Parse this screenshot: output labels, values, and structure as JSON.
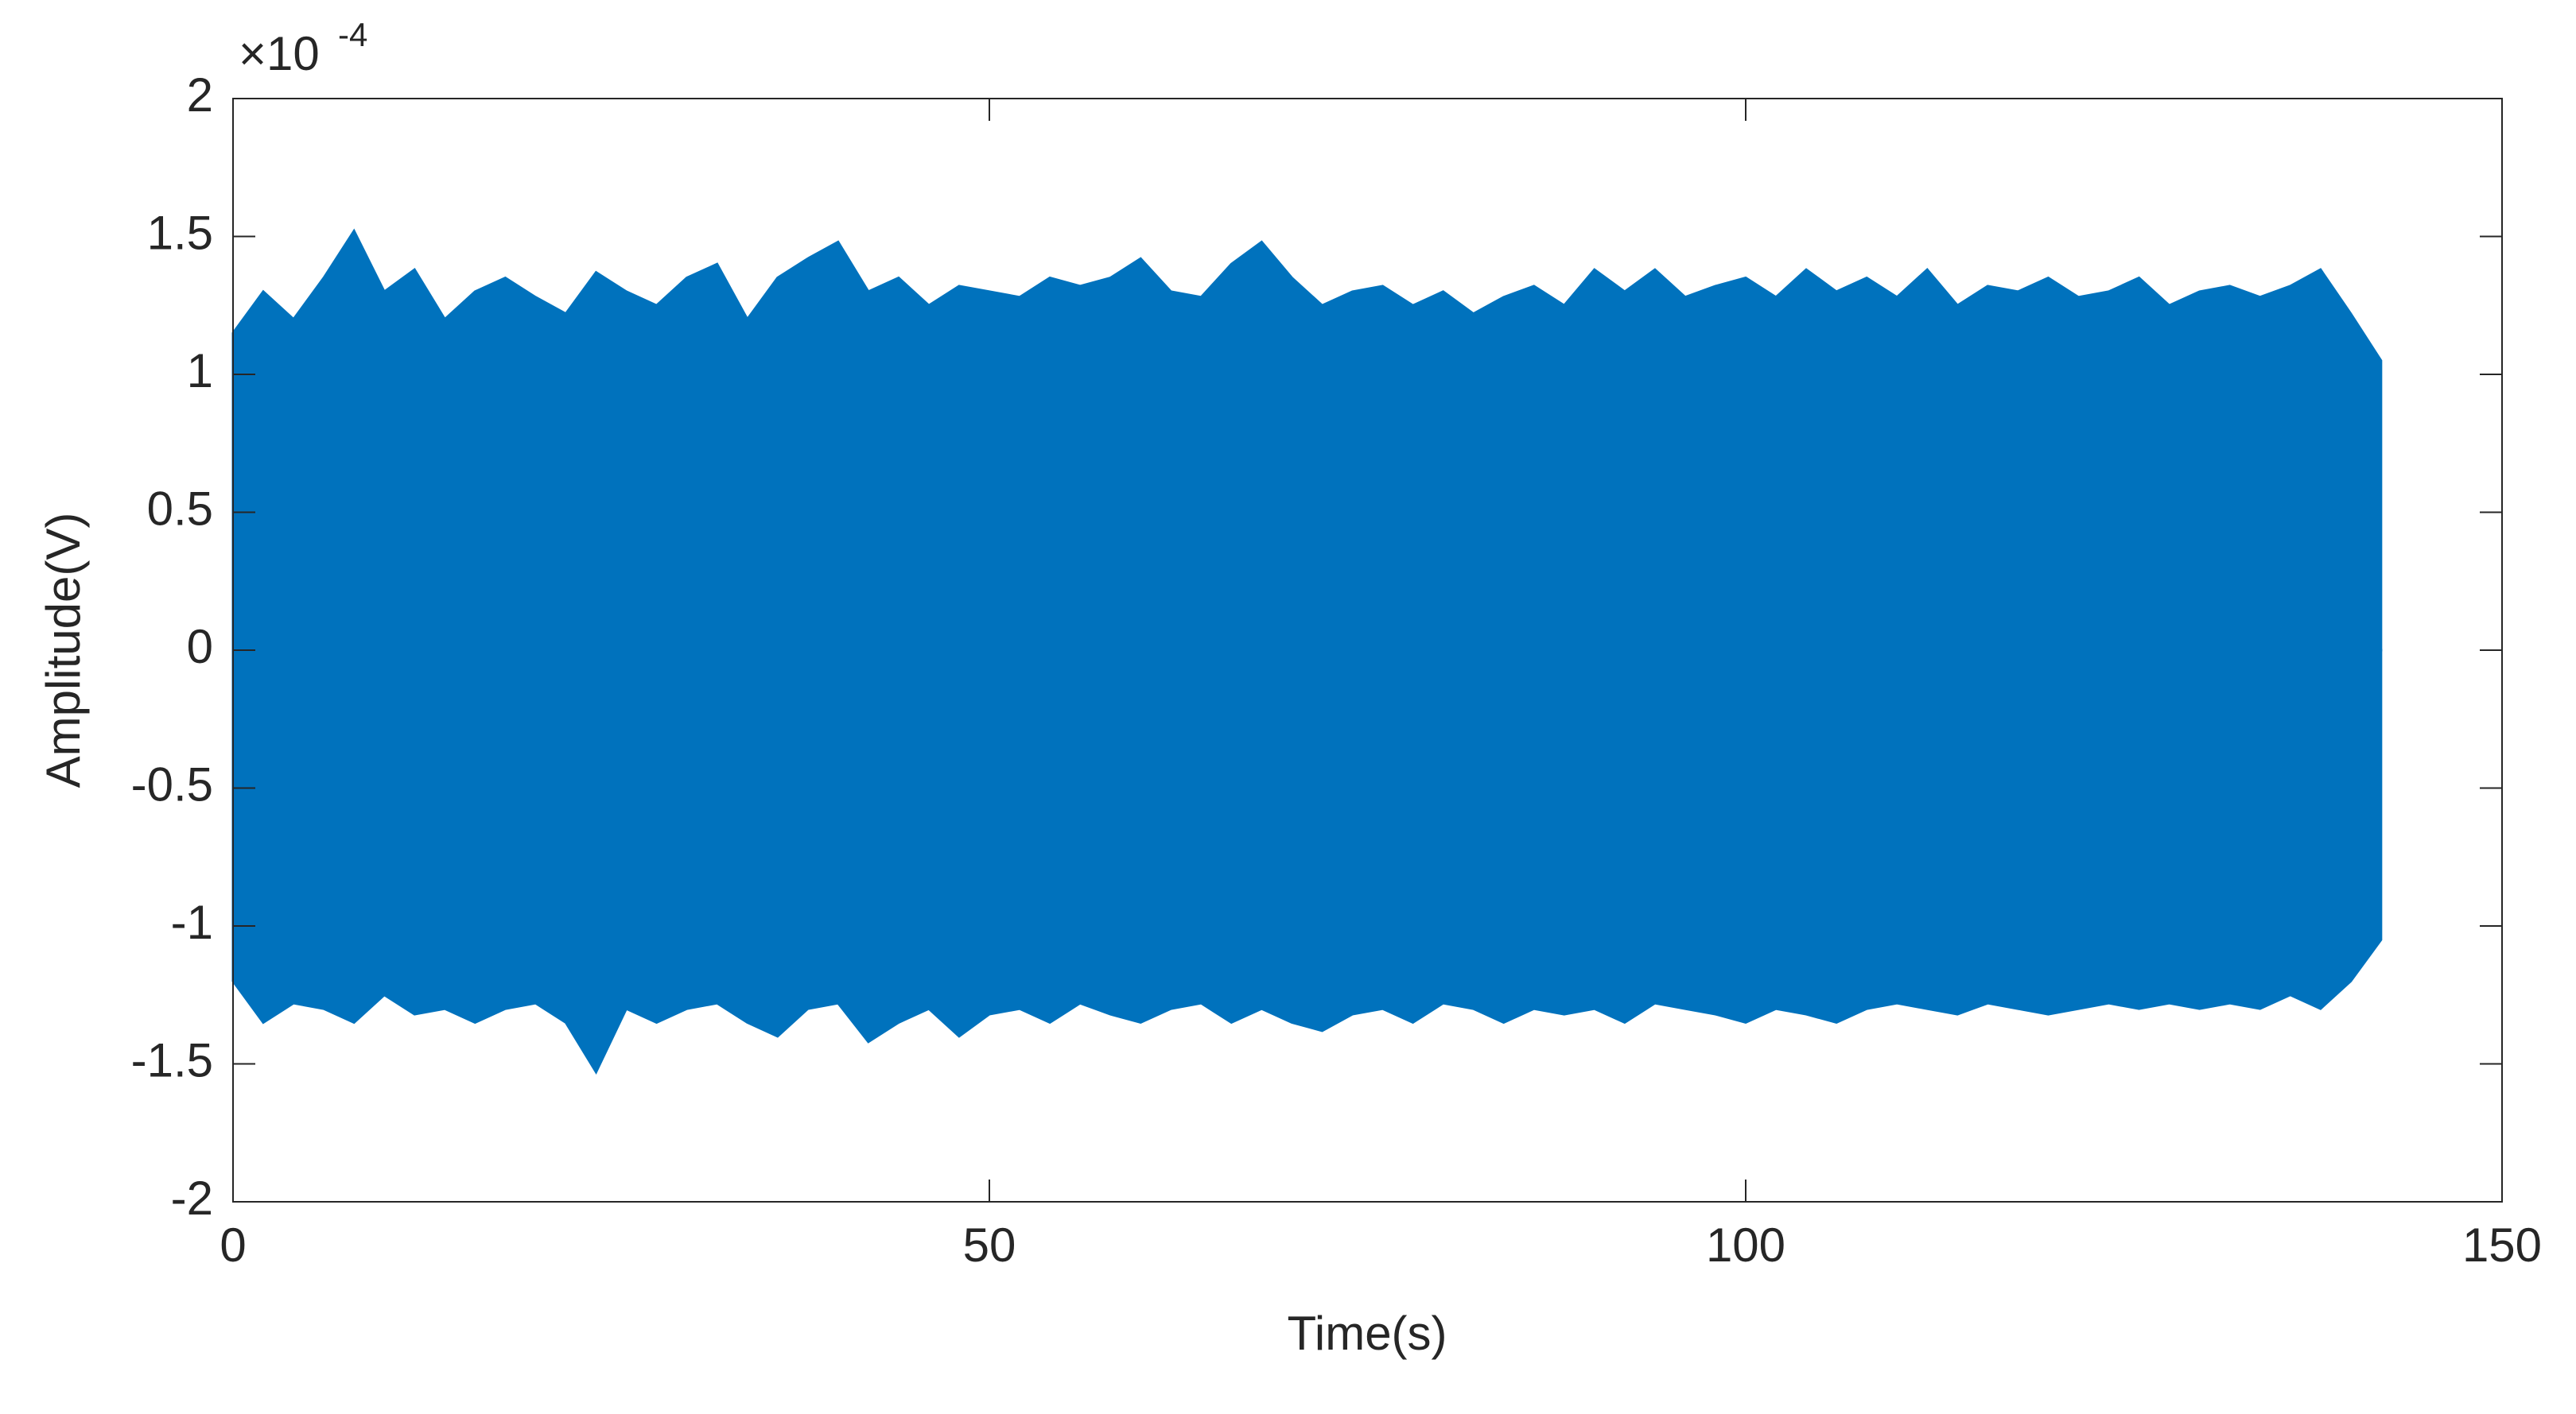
{
  "chart_data": {
    "type": "area",
    "x_label": "Time(s)",
    "y_label": "Amplitude(V)",
    "y_multiplier": "×10",
    "y_exponent": -4,
    "color": "#0072bd",
    "x": [
      0,
      2,
      4,
      6,
      8,
      10,
      12,
      14,
      16,
      18,
      20,
      22,
      24,
      26,
      28,
      30,
      32,
      34,
      36,
      38,
      40,
      42,
      44,
      46,
      48,
      50,
      52,
      54,
      56,
      58,
      60,
      62,
      64,
      66,
      68,
      70,
      72,
      74,
      76,
      78,
      80,
      82,
      84,
      86,
      88,
      90,
      92,
      94,
      96,
      98,
      100,
      102,
      104,
      106,
      108,
      110,
      112,
      114,
      116,
      118,
      120,
      122,
      124,
      126,
      128,
      130,
      132,
      134,
      136,
      138,
      140,
      142
    ],
    "upper": [
      1.15,
      1.3,
      1.2,
      1.35,
      1.52,
      1.3,
      1.38,
      1.2,
      1.3,
      1.35,
      1.28,
      1.22,
      1.37,
      1.3,
      1.25,
      1.35,
      1.4,
      1.2,
      1.35,
      1.42,
      1.48,
      1.3,
      1.35,
      1.25,
      1.32,
      1.3,
      1.28,
      1.35,
      1.32,
      1.35,
      1.42,
      1.3,
      1.28,
      1.4,
      1.48,
      1.35,
      1.25,
      1.3,
      1.32,
      1.25,
      1.3,
      1.22,
      1.28,
      1.32,
      1.25,
      1.38,
      1.3,
      1.38,
      1.28,
      1.32,
      1.35,
      1.28,
      1.38,
      1.3,
      1.35,
      1.28,
      1.38,
      1.25,
      1.32,
      1.3,
      1.35,
      1.28,
      1.3,
      1.35,
      1.25,
      1.3,
      1.32,
      1.28,
      1.32,
      1.38,
      1.22,
      1.05
    ],
    "lower": [
      -1.2,
      -1.35,
      -1.28,
      -1.3,
      -1.35,
      -1.25,
      -1.32,
      -1.3,
      -1.35,
      -1.3,
      -1.28,
      -1.35,
      -1.53,
      -1.3,
      -1.35,
      -1.3,
      -1.28,
      -1.35,
      -1.4,
      -1.3,
      -1.28,
      -1.42,
      -1.35,
      -1.3,
      -1.4,
      -1.32,
      -1.3,
      -1.35,
      -1.28,
      -1.32,
      -1.35,
      -1.3,
      -1.28,
      -1.35,
      -1.3,
      -1.35,
      -1.38,
      -1.32,
      -1.3,
      -1.35,
      -1.28,
      -1.3,
      -1.35,
      -1.3,
      -1.32,
      -1.3,
      -1.35,
      -1.28,
      -1.3,
      -1.32,
      -1.35,
      -1.3,
      -1.32,
      -1.35,
      -1.3,
      -1.28,
      -1.3,
      -1.32,
      -1.28,
      -1.3,
      -1.32,
      -1.3,
      -1.28,
      -1.3,
      -1.28,
      -1.3,
      -1.28,
      -1.3,
      -1.25,
      -1.3,
      -1.2,
      -1.05
    ],
    "xlim": [
      0,
      150
    ],
    "xticks": [
      0,
      50,
      100,
      150
    ],
    "ylim": [
      -2,
      2
    ],
    "yticks": [
      -2,
      -1.5,
      -1,
      -0.5,
      0,
      0.5,
      1,
      1.5,
      2
    ],
    "grid": false
  }
}
